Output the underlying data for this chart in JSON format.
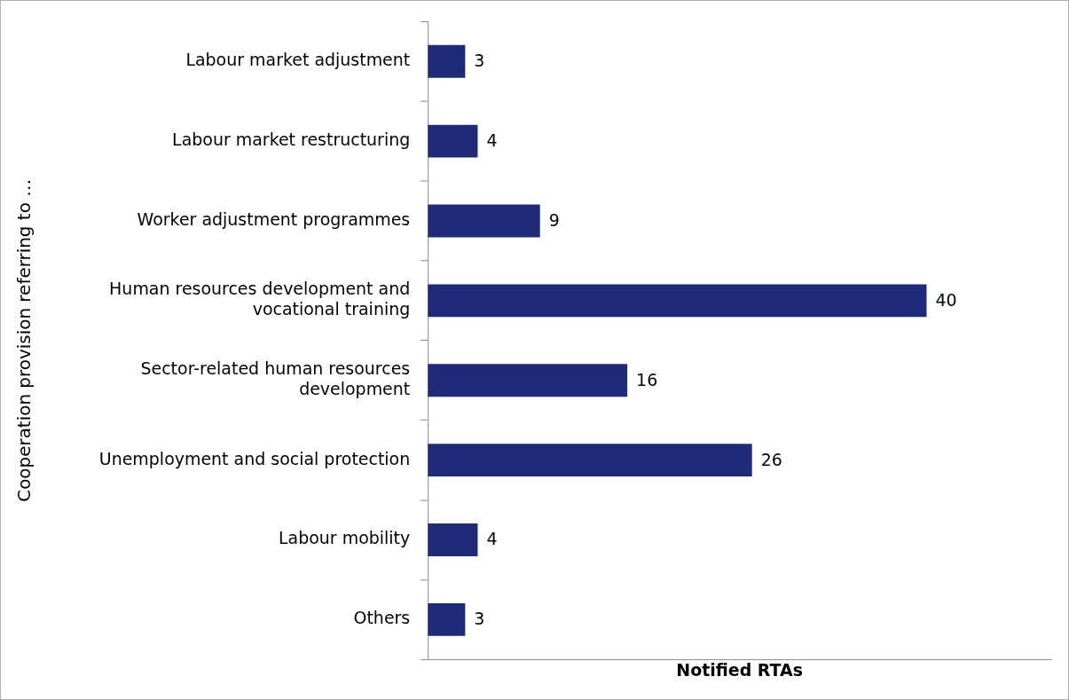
{
  "chart_data": {
    "type": "bar",
    "orientation": "horizontal",
    "categories": [
      "Labour market adjustment",
      "Labour market restructuring",
      "Worker adjustment programmes",
      "Human resources development and vocational training",
      "Sector-related human resources development",
      "Unemployment and social protection",
      "Labour mobility",
      "Others"
    ],
    "values": [
      3,
      4,
      9,
      40,
      16,
      26,
      4,
      3
    ],
    "color": "#202a7a",
    "xlim": [
      0,
      50
    ],
    "xlabel": "Notified RTAs",
    "ylabel": "Cooperation provision referring to …",
    "data_labels": true,
    "tick_labels": "y",
    "grid": false,
    "legend": false
  }
}
